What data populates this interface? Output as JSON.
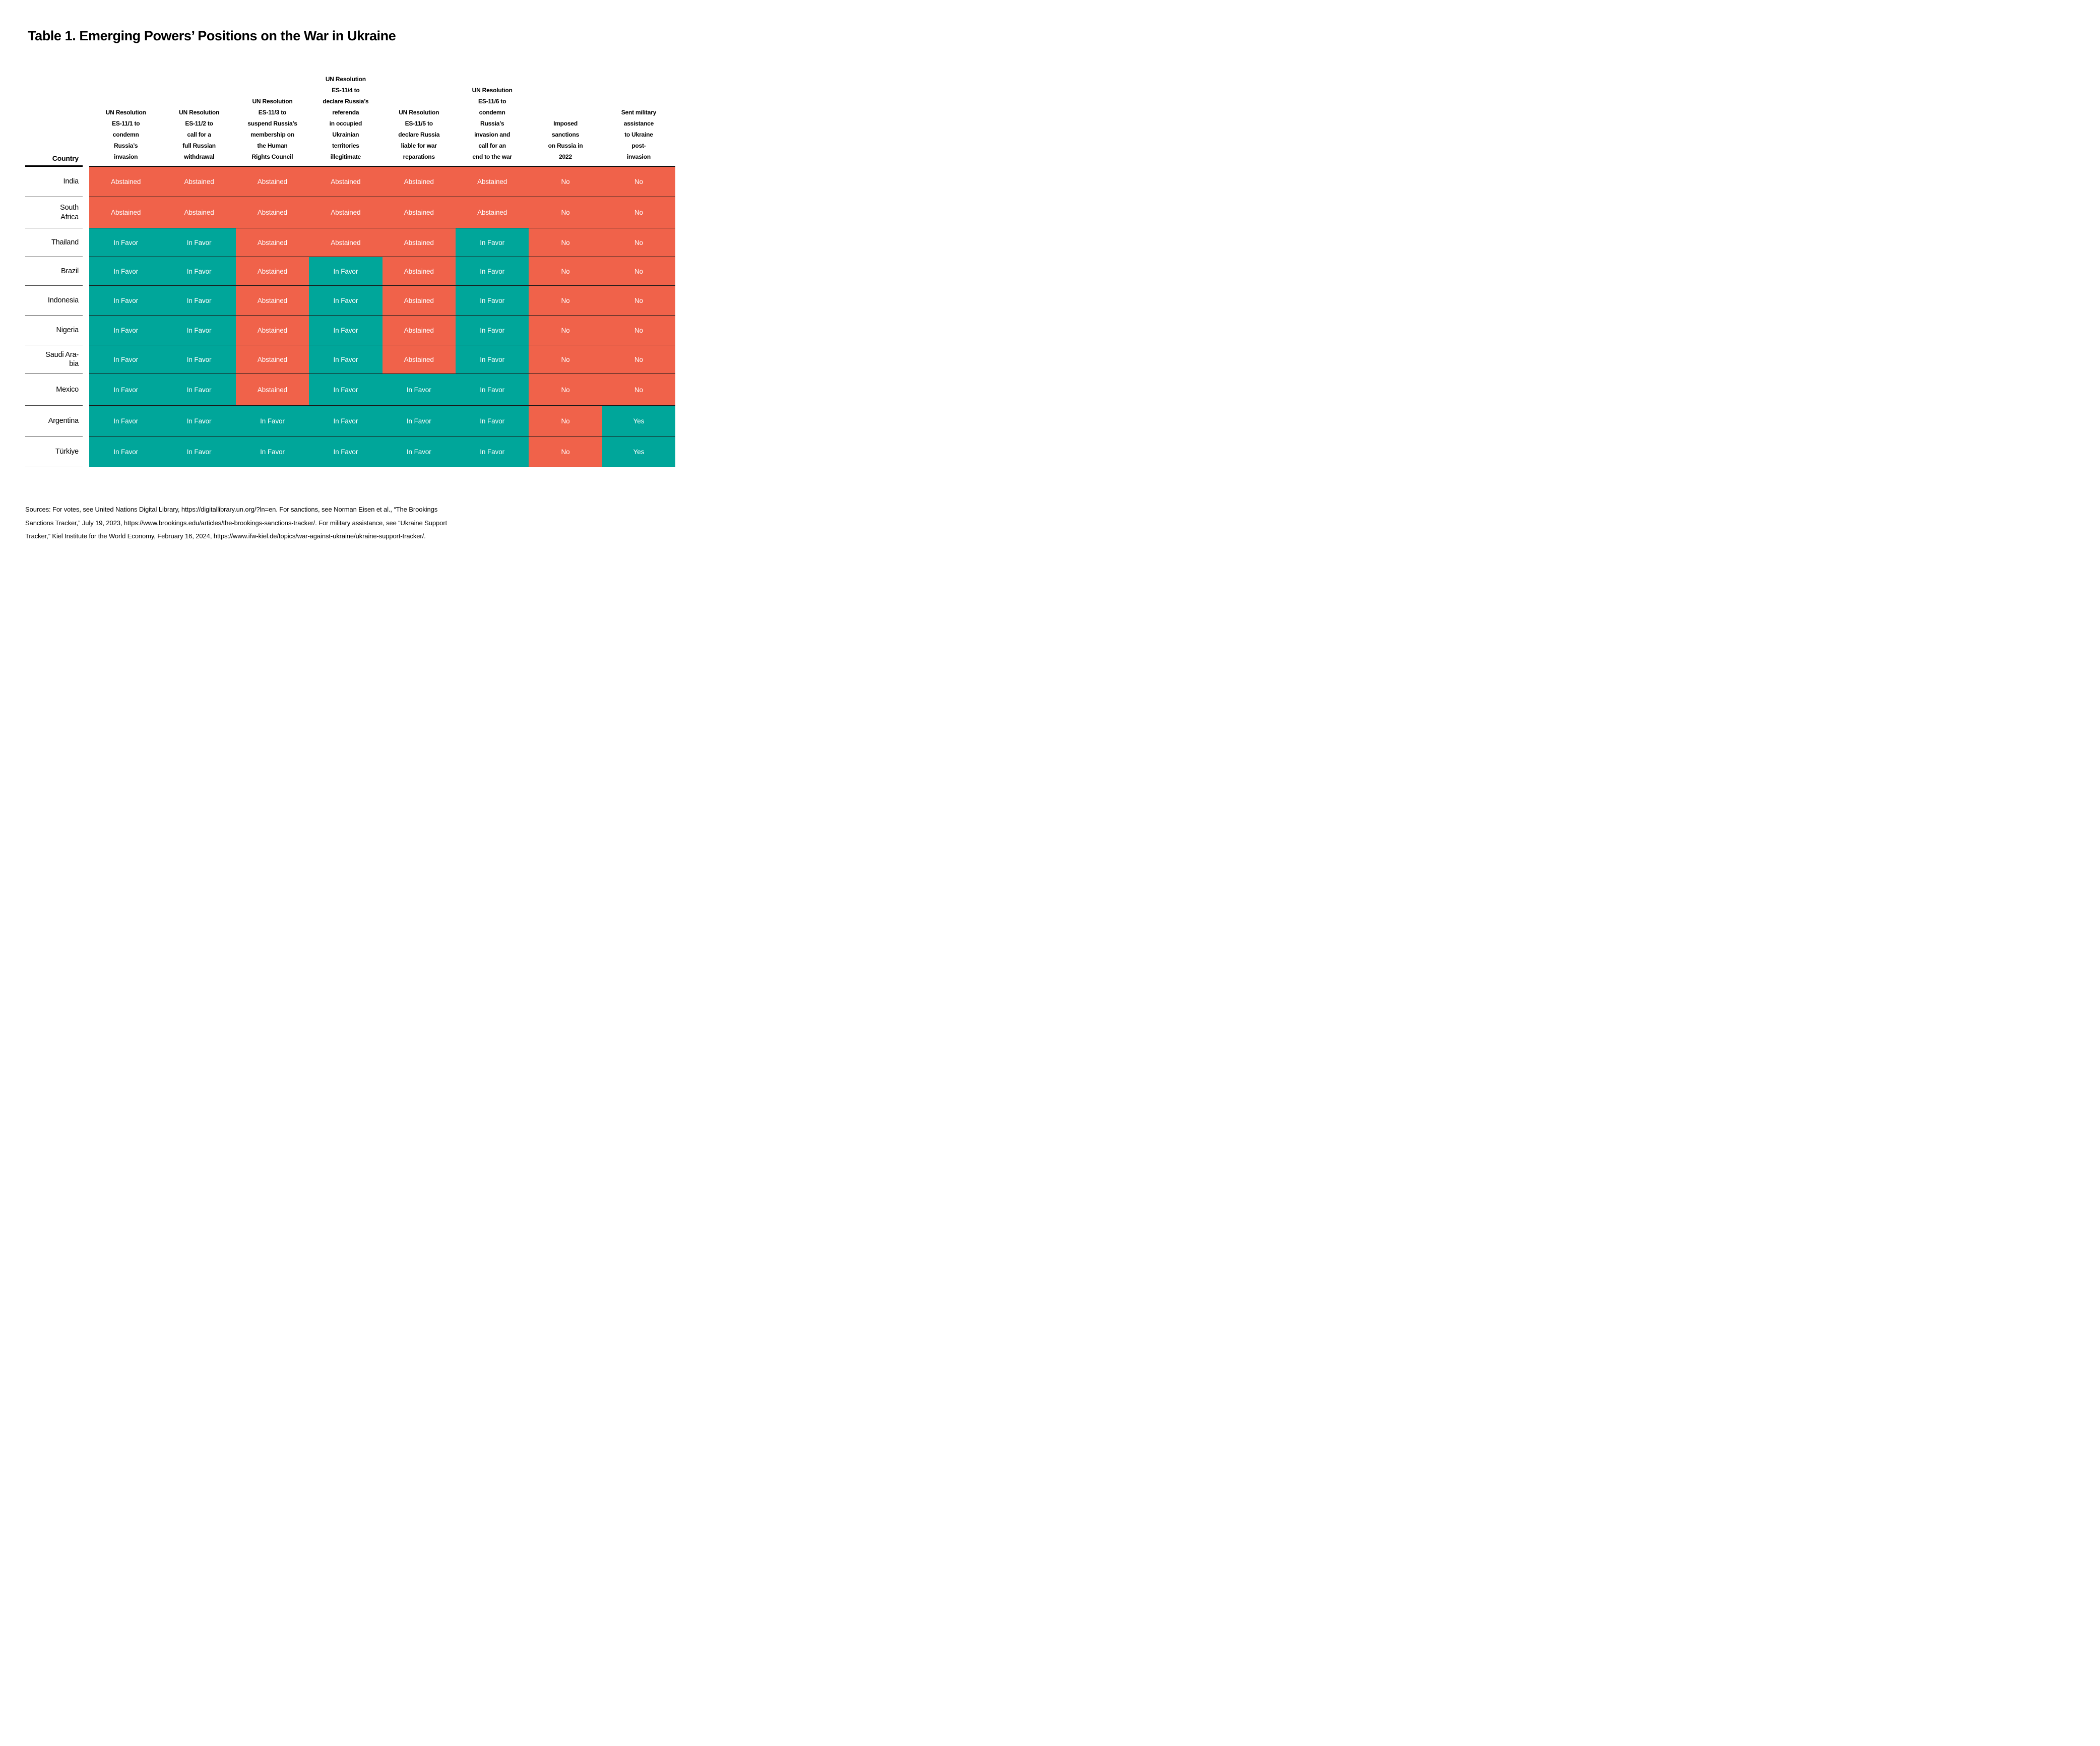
{
  "title": "Table 1. Emerging Powers’ Positions on the War in Ukraine",
  "table": {
    "country_header": "Country",
    "columns": [
      "UN Resolution\nES-11/1 to\ncondemn\nRussia’s\ninvasion",
      "UN Resolution\nES-11/2 to\ncall for a\nfull Russian\nwithdrawal",
      "UN Resolution\nES-11/3 to\nsuspend Russia’s\nmembership on\nthe Human\nRights Council",
      "UN Resolution\nES-11/4 to\ndeclare Russia’s\nreferenda\nin occupied\nUkrainian\nterritories\nillegitimate",
      "UN Resolution\nES-11/5 to\ndeclare Russia\nliable for war\nreparations",
      "UN Resolution\nES-11/6 to\ncondemn\nRussia’s\ninvasion and\ncall for an\nend to the war",
      "Imposed\nsanctions\non Russia in\n2022",
      "Sent military\nassistance\nto Ukraine\npost-\ninvasion"
    ],
    "rows": [
      {
        "country": "India",
        "values": [
          "Abstained",
          "Abstained",
          "Abstained",
          "Abstained",
          "Abstained",
          "Abstained",
          "No",
          "No"
        ]
      },
      {
        "country": "South\nAfrica",
        "values": [
          "Abstained",
          "Abstained",
          "Abstained",
          "Abstained",
          "Abstained",
          "Abstained",
          "No",
          "No"
        ]
      },
      {
        "country": "Thailand",
        "values": [
          "In Favor",
          "In Favor",
          "Abstained",
          "Abstained",
          "Abstained",
          "In Favor",
          "No",
          "No"
        ]
      },
      {
        "country": "Brazil",
        "values": [
          "In Favor",
          "In Favor",
          "Abstained",
          "In Favor",
          "Abstained",
          "In Favor",
          "No",
          "No"
        ]
      },
      {
        "country": "Indonesia",
        "values": [
          "In Favor",
          "In Favor",
          "Abstained",
          "In Favor",
          "Abstained",
          "In Favor",
          "No",
          "No"
        ]
      },
      {
        "country": "Nigeria",
        "values": [
          "In Favor",
          "In Favor",
          "Abstained",
          "In Favor",
          "Abstained",
          "In Favor",
          "No",
          "No"
        ]
      },
      {
        "country": "Saudi Ara-\nbia",
        "values": [
          "In Favor",
          "In Favor",
          "Abstained",
          "In Favor",
          "Abstained",
          "In Favor",
          "No",
          "No"
        ]
      },
      {
        "country": "Mexico",
        "values": [
          "In Favor",
          "In Favor",
          "Abstained",
          "In Favor",
          "In Favor",
          "In Favor",
          "No",
          "No"
        ]
      },
      {
        "country": "Argentina",
        "values": [
          "In Favor",
          "In Favor",
          "In Favor",
          "In Favor",
          "In Favor",
          "In Favor",
          "No",
          "Yes"
        ]
      },
      {
        "country": "Türkiye",
        "values": [
          "In Favor",
          "In Favor",
          "In Favor",
          "In Favor",
          "In Favor",
          "In Favor",
          "No",
          "Yes"
        ]
      }
    ]
  },
  "legend": {
    "cell_colors": {
      "In Favor": "#00A69A",
      "Yes": "#00A69A",
      "Abstained": "#F0624A",
      "No": "#F0624A"
    }
  },
  "sources": "Sources: For votes, see United Nations Digital Library, https://digitallibrary.un.org/?ln=en. For sanctions, see Norman Eisen et al., “The Brookings\nSanctions Tracker,” July 19, 2023, https://www.brookings.edu/articles/the-brookings-sanctions-tracker/. For military assistance, see “Ukraine Support\nTracker,” Kiel Institute for the World Economy, February 16, 2024, https://www.ifw-kiel.de/topics/war-against-ukraine/ukraine-support-tracker/.",
  "chart_data": {
    "type": "table",
    "title": "Table 1. Emerging Powers’ Positions on the War in Ukraine",
    "columns": [
      "Country",
      "UN Resolution ES-11/1 to condemn Russia’s invasion",
      "UN Resolution ES-11/2 to call for a full Russian withdrawal",
      "UN Resolution ES-11/3 to suspend Russia’s membership on the Human Rights Council",
      "UN Resolution ES-11/4 to declare Russia’s referenda in occupied Ukrainian territories illegitimate",
      "UN Resolution ES-11/5 to declare Russia liable for war reparations",
      "UN Resolution ES-11/6 to condemn Russia’s invasion and call for an end to the war",
      "Imposed sanctions on Russia in 2022",
      "Sent military assistance to Ukraine post-invasion"
    ],
    "rows": [
      [
        "India",
        "Abstained",
        "Abstained",
        "Abstained",
        "Abstained",
        "Abstained",
        "Abstained",
        "No",
        "No"
      ],
      [
        "South Africa",
        "Abstained",
        "Abstained",
        "Abstained",
        "Abstained",
        "Abstained",
        "Abstained",
        "No",
        "No"
      ],
      [
        "Thailand",
        "In Favor",
        "In Favor",
        "Abstained",
        "Abstained",
        "Abstained",
        "In Favor",
        "No",
        "No"
      ],
      [
        "Brazil",
        "In Favor",
        "In Favor",
        "Abstained",
        "In Favor",
        "Abstained",
        "In Favor",
        "No",
        "No"
      ],
      [
        "Indonesia",
        "In Favor",
        "In Favor",
        "Abstained",
        "In Favor",
        "Abstained",
        "In Favor",
        "No",
        "No"
      ],
      [
        "Nigeria",
        "In Favor",
        "In Favor",
        "Abstained",
        "In Favor",
        "Abstained",
        "In Favor",
        "No",
        "No"
      ],
      [
        "Saudi Arabia",
        "In Favor",
        "In Favor",
        "Abstained",
        "In Favor",
        "Abstained",
        "In Favor",
        "No",
        "No"
      ],
      [
        "Mexico",
        "In Favor",
        "In Favor",
        "Abstained",
        "In Favor",
        "In Favor",
        "In Favor",
        "No",
        "No"
      ],
      [
        "Argentina",
        "In Favor",
        "In Favor",
        "In Favor",
        "In Favor",
        "In Favor",
        "In Favor",
        "No",
        "Yes"
      ],
      [
        "Türkiye",
        "In Favor",
        "In Favor",
        "In Favor",
        "In Favor",
        "In Favor",
        "In Favor",
        "No",
        "Yes"
      ]
    ],
    "color_coding": {
      "In Favor / Yes": "#00A69A",
      "Abstained / No": "#F0624A"
    },
    "layout_hints": {
      "header_alignment": "bottom-centered",
      "country_alignment": "right",
      "grid": "horizontal hairlines between rows"
    }
  }
}
